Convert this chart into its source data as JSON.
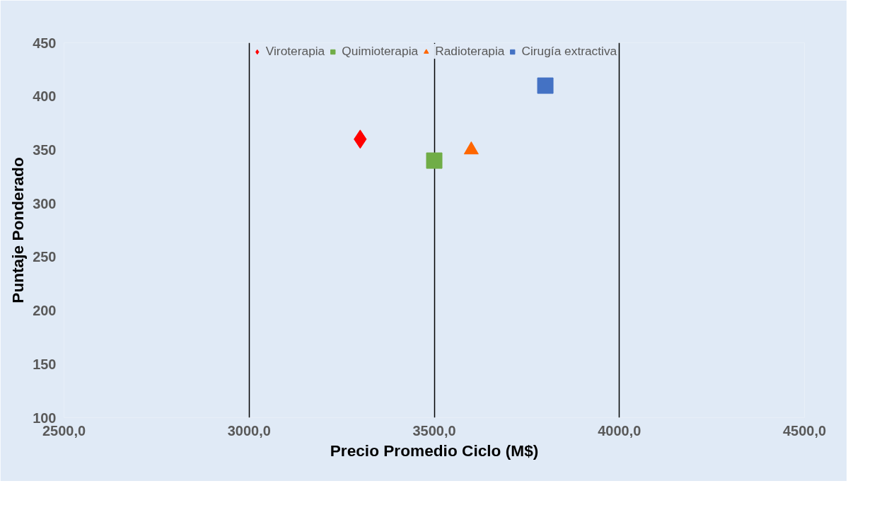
{
  "chart_data": {
    "type": "scatter",
    "xlabel": "Precio Promedio Ciclo (M$)",
    "ylabel": "Puntaje Ponderado",
    "series": [
      {
        "name": "Viroterapia",
        "color": "#ff0000",
        "marker": "diamond",
        "x": [
          3300
        ],
        "values": [
          360
        ]
      },
      {
        "name": "Quimioterapia",
        "color": "#70ad47",
        "marker": "square",
        "x": [
          3500
        ],
        "values": [
          340
        ]
      },
      {
        "name": "Radioterapia",
        "color": "#ff6600",
        "marker": "triangle",
        "x": [
          3600
        ],
        "values": [
          350
        ]
      },
      {
        "name": "Cirugía extractiva",
        "color": "#4472c4",
        "marker": "square",
        "x": [
          3800
        ],
        "values": [
          410
        ]
      }
    ],
    "xlim": [
      2500,
      4500
    ],
    "xticks": [
      {
        "value": 2500,
        "label": "2500,0"
      },
      {
        "value": 3000,
        "label": "3000,0"
      },
      {
        "value": 3500,
        "label": "3500,0"
      },
      {
        "value": 4000,
        "label": "4000,0"
      },
      {
        "value": 4500,
        "label": "4500,0"
      }
    ],
    "ylim": [
      100,
      450
    ],
    "yticks": [
      100,
      150,
      200,
      250,
      300,
      350,
      400,
      450
    ],
    "grid": "x",
    "legend": "top"
  }
}
